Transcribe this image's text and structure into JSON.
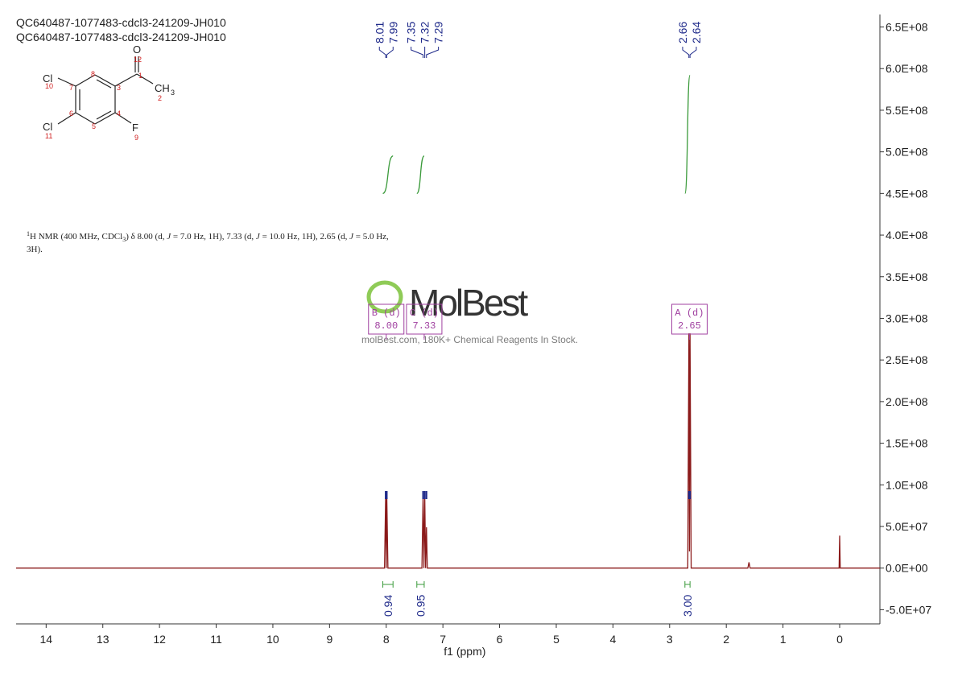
{
  "title_lines": [
    "QC640487-1077483-cdcl3-241209-JH010",
    "QC640487-1077483-cdcl3-241209-JH010"
  ],
  "structure": {
    "O": "O",
    "O_num": "12",
    "C1": "1",
    "CH3": "CH",
    "CH3_sub": "3",
    "C2": "2",
    "Cl_a": "Cl",
    "Cl_a_num": "10",
    "C7": "7",
    "C8": "8",
    "C3": "3",
    "C6": "6",
    "C4": "4",
    "C5": "5",
    "F": "F",
    "F_num": "9",
    "Cl_b": "Cl",
    "Cl_b_num": "11"
  },
  "description": [
    "1",
    "H NMR (400 MHz, CDCl",
    "3",
    ") δ 8.00 (d, ",
    "J",
    " = 7.0 Hz, 1H), 7.33 (d, ",
    "J",
    " = 10.0 Hz, 1H), 2.65 (d, ",
    "J",
    " = 5.0 Hz,",
    "3H)."
  ],
  "watermark": {
    "logo": "MolBest",
    "tagline": "molBest.com, 180K+ Chemical Reagents In Stock."
  },
  "chart_data": {
    "type": "line",
    "xlabel": "f1 (ppm)",
    "xlim": [
      14.53,
      -0.71
    ],
    "xticks": [
      14,
      13,
      12,
      11,
      10,
      9,
      8,
      7,
      6,
      5,
      4,
      3,
      2,
      1,
      0
    ],
    "ylim": [
      -67000000,
      665000000
    ],
    "yticks": [
      {
        "value": 650000000,
        "label": "6.5E+08"
      },
      {
        "value": 600000000,
        "label": "6.0E+08"
      },
      {
        "value": 550000000,
        "label": "5.5E+08"
      },
      {
        "value": 500000000,
        "label": "5.0E+08"
      },
      {
        "value": 450000000,
        "label": "4.5E+08"
      },
      {
        "value": 400000000,
        "label": "4.0E+08"
      },
      {
        "value": 350000000,
        "label": "3.5E+08"
      },
      {
        "value": 300000000,
        "label": "3.0E+08"
      },
      {
        "value": 250000000,
        "label": "2.5E+08"
      },
      {
        "value": 200000000,
        "label": "2.0E+08"
      },
      {
        "value": 150000000,
        "label": "1.5E+08"
      },
      {
        "value": 100000000,
        "label": "1.0E+08"
      },
      {
        "value": 50000000,
        "label": "5.0E+07"
      },
      {
        "value": 0,
        "label": "0.0E+00"
      },
      {
        "value": -50000000,
        "label": "-5.0E+07"
      }
    ],
    "series": [
      {
        "color": "#8b1a1a",
        "x": [
          14.53,
          8.03,
          8.01,
          8.0,
          7.99,
          7.97,
          7.37,
          7.35,
          7.335,
          7.32,
          7.305,
          7.29,
          7.275,
          2.68,
          2.66,
          2.65,
          2.64,
          2.62,
          1.62,
          1.6,
          1.58,
          0.01,
          0.0,
          -0.01,
          -0.71
        ],
        "values": [
          0,
          0,
          86000000,
          0,
          86000000,
          0,
          0,
          86000000,
          0,
          86000000,
          0,
          49000000,
          0,
          0,
          282000000,
          20000000,
          282000000,
          0,
          0,
          7000000,
          0,
          0,
          39000000,
          0,
          0
        ]
      }
    ],
    "peak_labels": [
      8.01,
      7.99,
      7.35,
      7.32,
      7.29,
      2.66,
      2.64
    ],
    "integrals": [
      {
        "range": [
          8.06,
          7.88
        ],
        "curve": [
          450000000,
          495000000
        ],
        "label": 0.94
      },
      {
        "range": [
          7.46,
          7.33
        ],
        "curve": [
          450000000,
          495000000
        ],
        "label": 0.95
      },
      {
        "range": [
          2.73,
          2.64
        ],
        "curve": [
          450000000,
          592000000
        ],
        "label": {
          "value": 3.0,
          "label": "3.00"
        }
      }
    ],
    "multiplets": [
      {
        "name": "B (d)",
        "shift": {
          "value": 8.0,
          "label": "8.00"
        }
      },
      {
        "name": "C (d)",
        "shift": {
          "value": 7.33,
          "label": "7.33"
        }
      },
      {
        "name": "A (d)",
        "shift": {
          "value": 2.65,
          "label": "2.65"
        }
      }
    ]
  }
}
